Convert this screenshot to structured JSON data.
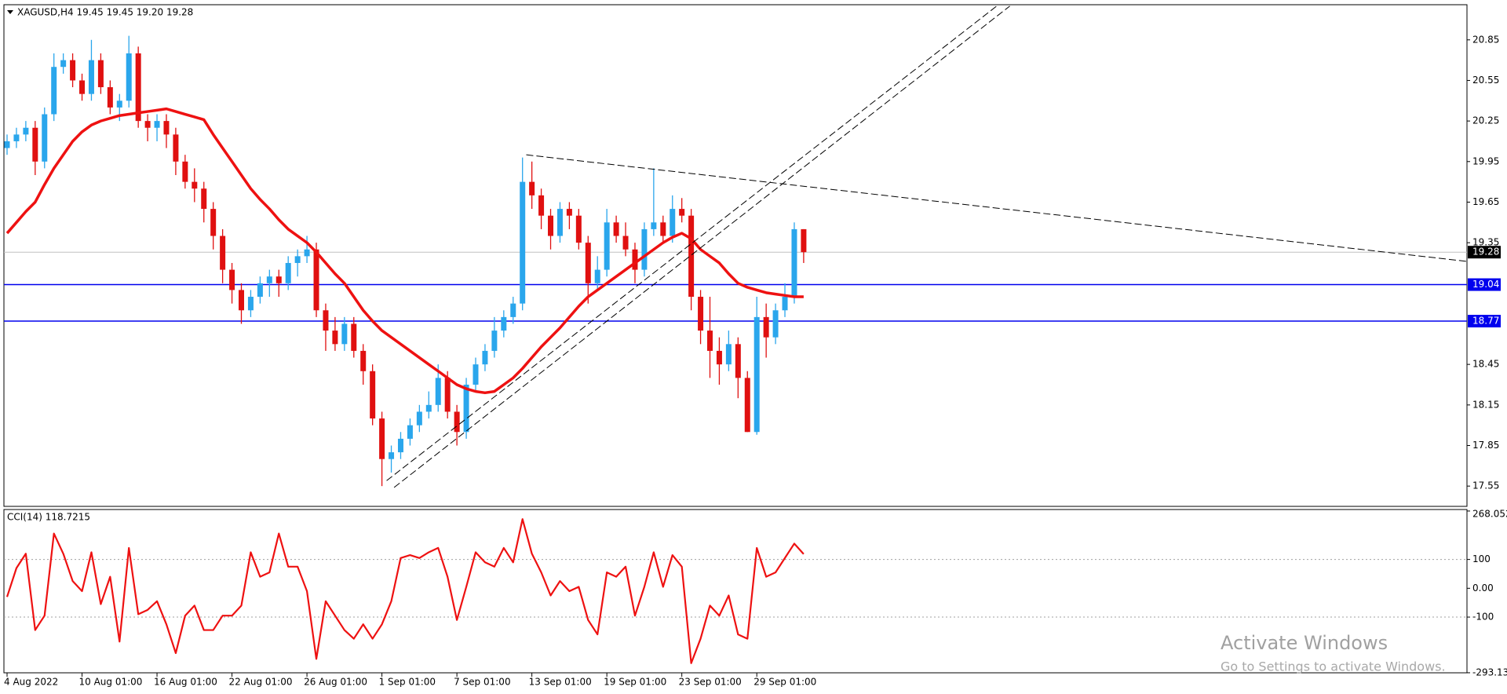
{
  "chart_data": [
    {
      "type": "candlestick",
      "title": "XAGUSD,H4  19.45 19.45 19.20 19.28",
      "categories": [
        "4 Aug 2022",
        null,
        null,
        null,
        null,
        null,
        null,
        null,
        "10 Aug 01:00",
        null,
        null,
        null,
        null,
        null,
        null,
        null,
        "16 Aug 01:00",
        null,
        null,
        null,
        null,
        null,
        null,
        null,
        "22 Aug 01:00",
        null,
        null,
        null,
        null,
        null,
        null,
        null,
        "26 Aug 01:00",
        null,
        null,
        null,
        null,
        null,
        null,
        null,
        "1 Sep 01:00",
        null,
        null,
        null,
        null,
        null,
        null,
        null,
        "7 Sep 01:00",
        null,
        null,
        null,
        null,
        null,
        null,
        null,
        "13 Sep 01:00",
        null,
        null,
        null,
        null,
        null,
        null,
        null,
        "19 Sep 01:00",
        null,
        null,
        null,
        null,
        null,
        null,
        null,
        "23 Sep 01:00",
        null,
        null,
        null,
        null,
        null,
        null,
        null,
        "29 Sep 01:00",
        null,
        null,
        null,
        null,
        null
      ],
      "ohlc": [
        [
          20.05,
          20.15,
          20.0,
          20.1
        ],
        [
          20.1,
          20.2,
          20.05,
          20.15
        ],
        [
          20.15,
          20.25,
          20.1,
          20.2
        ],
        [
          20.2,
          20.25,
          19.85,
          19.95
        ],
        [
          19.95,
          20.35,
          19.9,
          20.3
        ],
        [
          20.3,
          20.75,
          20.25,
          20.65
        ],
        [
          20.65,
          20.75,
          20.6,
          20.7
        ],
        [
          20.7,
          20.75,
          20.5,
          20.55
        ],
        [
          20.55,
          20.6,
          20.4,
          20.45
        ],
        [
          20.45,
          20.85,
          20.4,
          20.7
        ],
        [
          20.7,
          20.75,
          20.45,
          20.5
        ],
        [
          20.5,
          20.55,
          20.3,
          20.35
        ],
        [
          20.35,
          20.45,
          20.25,
          20.4
        ],
        [
          20.4,
          20.88,
          20.35,
          20.75
        ],
        [
          20.75,
          20.8,
          20.2,
          20.25
        ],
        [
          20.25,
          20.3,
          20.1,
          20.2
        ],
        [
          20.2,
          20.3,
          20.1,
          20.25
        ],
        [
          20.25,
          20.3,
          20.05,
          20.15
        ],
        [
          20.15,
          20.2,
          19.85,
          19.95
        ],
        [
          19.95,
          20.0,
          19.75,
          19.8
        ],
        [
          19.8,
          19.9,
          19.65,
          19.75
        ],
        [
          19.75,
          19.8,
          19.5,
          19.6
        ],
        [
          19.6,
          19.65,
          19.3,
          19.4
        ],
        [
          19.4,
          19.45,
          19.05,
          19.15
        ],
        [
          19.15,
          19.2,
          18.9,
          19.0
        ],
        [
          19.0,
          19.05,
          18.75,
          18.85
        ],
        [
          18.85,
          19.0,
          18.8,
          18.95
        ],
        [
          18.95,
          19.1,
          18.9,
          19.05
        ],
        [
          19.05,
          19.15,
          18.95,
          19.1
        ],
        [
          19.1,
          19.15,
          18.95,
          19.05
        ],
        [
          19.05,
          19.25,
          19.0,
          19.2
        ],
        [
          19.2,
          19.3,
          19.1,
          19.25
        ],
        [
          19.25,
          19.4,
          19.2,
          19.3
        ],
        [
          19.3,
          19.35,
          18.8,
          18.85
        ],
        [
          18.85,
          18.9,
          18.55,
          18.7
        ],
        [
          18.7,
          18.8,
          18.55,
          18.6
        ],
        [
          18.6,
          18.8,
          18.55,
          18.75
        ],
        [
          18.75,
          18.8,
          18.5,
          18.55
        ],
        [
          18.55,
          18.6,
          18.3,
          18.4
        ],
        [
          18.4,
          18.45,
          18.0,
          18.05
        ],
        [
          18.05,
          18.1,
          17.55,
          17.75
        ],
        [
          17.75,
          17.85,
          17.65,
          17.8
        ],
        [
          17.8,
          17.95,
          17.75,
          17.9
        ],
        [
          17.9,
          18.05,
          17.85,
          18.0
        ],
        [
          18.0,
          18.15,
          17.95,
          18.1
        ],
        [
          18.1,
          18.25,
          18.05,
          18.15
        ],
        [
          18.15,
          18.45,
          18.1,
          18.35
        ],
        [
          18.35,
          18.4,
          18.05,
          18.1
        ],
        [
          18.1,
          18.15,
          17.85,
          17.95
        ],
        [
          17.95,
          18.35,
          17.9,
          18.3
        ],
        [
          18.3,
          18.5,
          18.25,
          18.45
        ],
        [
          18.45,
          18.6,
          18.4,
          18.55
        ],
        [
          18.55,
          18.8,
          18.5,
          18.7
        ],
        [
          18.7,
          18.85,
          18.65,
          18.8
        ],
        [
          18.8,
          18.95,
          18.75,
          18.9
        ],
        [
          18.9,
          19.98,
          18.85,
          19.8
        ],
        [
          19.8,
          19.95,
          19.6,
          19.7
        ],
        [
          19.7,
          19.75,
          19.45,
          19.55
        ],
        [
          19.55,
          19.6,
          19.3,
          19.4
        ],
        [
          19.4,
          19.65,
          19.35,
          19.6
        ],
        [
          19.6,
          19.65,
          19.45,
          19.55
        ],
        [
          19.55,
          19.6,
          19.3,
          19.35
        ],
        [
          19.35,
          19.4,
          18.9,
          19.05
        ],
        [
          19.05,
          19.25,
          19.0,
          19.15
        ],
        [
          19.15,
          19.6,
          19.1,
          19.5
        ],
        [
          19.5,
          19.55,
          19.35,
          19.4
        ],
        [
          19.4,
          19.5,
          19.25,
          19.3
        ],
        [
          19.3,
          19.35,
          19.05,
          19.15
        ],
        [
          19.15,
          19.5,
          19.1,
          19.45
        ],
        [
          19.45,
          19.9,
          19.4,
          19.5
        ],
        [
          19.5,
          19.55,
          19.35,
          19.4
        ],
        [
          19.4,
          19.7,
          19.35,
          19.6
        ],
        [
          19.6,
          19.68,
          19.5,
          19.55
        ],
        [
          19.55,
          19.6,
          18.85,
          18.95
        ],
        [
          18.95,
          19.0,
          18.6,
          18.7
        ],
        [
          18.7,
          18.95,
          18.35,
          18.55
        ],
        [
          18.55,
          18.65,
          18.3,
          18.45
        ],
        [
          18.45,
          18.7,
          18.4,
          18.6
        ],
        [
          18.6,
          18.65,
          18.2,
          18.35
        ],
        [
          18.35,
          18.4,
          17.95,
          17.95
        ],
        [
          17.95,
          18.95,
          17.93,
          18.8
        ],
        [
          18.8,
          18.9,
          18.5,
          18.65
        ],
        [
          18.65,
          18.9,
          18.6,
          18.85
        ],
        [
          18.85,
          19.05,
          18.8,
          18.95
        ],
        [
          18.95,
          19.5,
          18.9,
          19.45
        ],
        [
          19.45,
          19.45,
          19.2,
          19.28
        ]
      ],
      "up_color": "#2aa6ec",
      "down_color": "#e01010",
      "ma": {
        "color": "#ee1111",
        "values": [
          19.42,
          19.5,
          19.58,
          19.65,
          19.78,
          19.9,
          20.0,
          20.1,
          20.17,
          20.22,
          20.25,
          20.27,
          20.29,
          20.3,
          20.31,
          20.32,
          20.33,
          20.34,
          20.32,
          20.3,
          20.28,
          20.26,
          20.15,
          20.05,
          19.95,
          19.85,
          19.75,
          19.67,
          19.6,
          19.52,
          19.45,
          19.4,
          19.35,
          19.28,
          19.2,
          19.12,
          19.05,
          18.95,
          18.85,
          18.77,
          18.7,
          18.65,
          18.6,
          18.55,
          18.5,
          18.45,
          18.4,
          18.35,
          18.3,
          18.27,
          18.25,
          18.24,
          18.25,
          18.3,
          18.35,
          18.42,
          18.5,
          18.58,
          18.65,
          18.72,
          18.8,
          18.88,
          18.95,
          19.0,
          19.05,
          19.1,
          19.15,
          19.2,
          19.25,
          19.3,
          19.35,
          19.39,
          19.42,
          19.38,
          19.3,
          19.25,
          19.2,
          19.12,
          19.05,
          19.02,
          19.0,
          18.98,
          18.97,
          18.96,
          18.95,
          18.95
        ]
      },
      "hlines": [
        {
          "value": 19.04,
          "color": "#0000ee"
        },
        {
          "value": 18.77,
          "color": "#0000ee"
        }
      ],
      "last_price": {
        "value": 19.28,
        "color": "#c0c0c0"
      },
      "trendlines": [
        {
          "x": [
            55.4,
            156
          ],
          "y": [
            20.0,
            19.21
          ]
        },
        {
          "x": [
            40.5,
            105.6
          ],
          "y": [
            17.59,
            21.1
          ]
        },
        {
          "x": [
            41.3,
            107.0
          ],
          "y": [
            17.54,
            21.1
          ]
        }
      ],
      "ylim": [
        17.4,
        21.11
      ],
      "yticks": [
        20.85,
        20.55,
        20.25,
        19.95,
        19.65,
        19.35,
        18.45,
        18.15,
        17.85,
        17.55
      ]
    },
    {
      "type": "line",
      "title": "CCI(14) 118.7215",
      "color": "#ee1111",
      "values": [
        -30,
        70,
        120,
        -145,
        -95,
        190,
        120,
        25,
        -10,
        125,
        -55,
        40,
        -185,
        140,
        -90,
        -75,
        -45,
        -125,
        -225,
        -95,
        -60,
        -145,
        -145,
        -95,
        -95,
        -60,
        125,
        40,
        55,
        190,
        75,
        75,
        -10,
        -245,
        -45,
        -95,
        -145,
        -175,
        -125,
        -175,
        -125,
        -45,
        105,
        115,
        105,
        125,
        140,
        40,
        -110,
        5,
        125,
        90,
        75,
        140,
        90,
        240,
        120,
        55,
        -25,
        25,
        -10,
        5,
        -110,
        -160,
        55,
        40,
        75,
        -95,
        5,
        125,
        5,
        115,
        75,
        -260,
        -175,
        -60,
        -95,
        -25,
        -160,
        -175,
        140,
        40,
        55,
        105,
        155,
        118.7215
      ],
      "ylim": [
        -293.3,
        273.3
      ],
      "yticks": [
        268.052,
        100,
        {
          "value": 0,
          "label": "0.00"
        },
        -100,
        -293.138
      ],
      "levels": [
        100,
        -100
      ]
    }
  ],
  "watermark": {
    "title": "Activate Windows",
    "subtitle": "Go to Settings to activate Windows."
  }
}
